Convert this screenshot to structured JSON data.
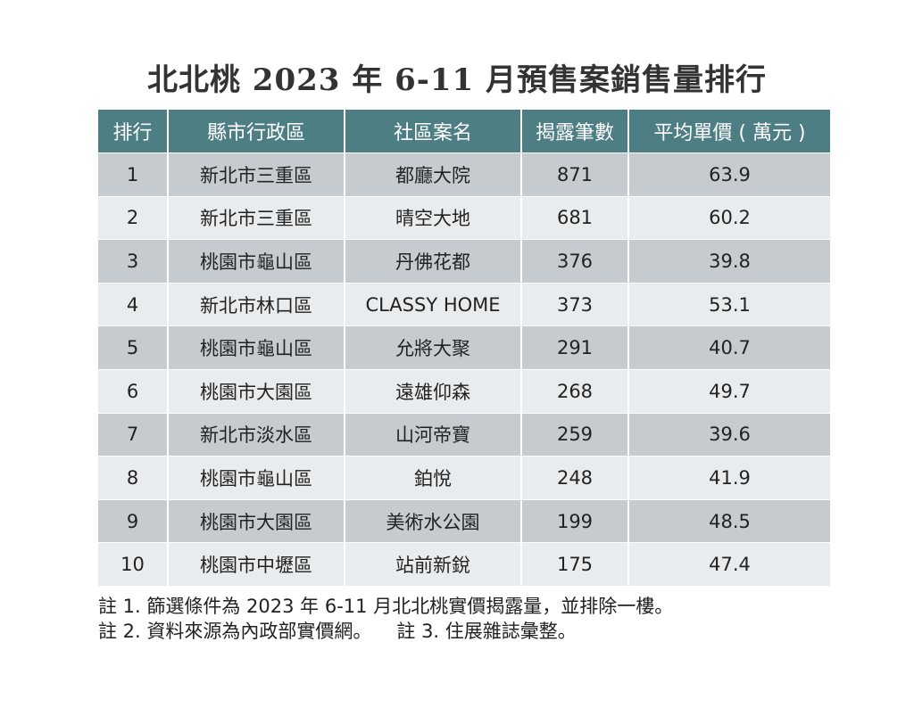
{
  "chart_data": {
    "type": "table",
    "title": "北北桃 2023 年 6-11 月預售案銷售量排行",
    "columns": [
      "排行",
      "縣市行政區",
      "社區案名",
      "揭露筆數",
      "平均單價 ( 萬元 )"
    ],
    "rows": [
      [
        "1",
        "新北市三重區",
        "都廳大院",
        "871",
        "63.9"
      ],
      [
        "2",
        "新北市三重區",
        "晴空大地",
        "681",
        "60.2"
      ],
      [
        "3",
        "桃園市龜山區",
        "丹佛花都",
        "376",
        "39.8"
      ],
      [
        "4",
        "新北市林口區",
        "CLASSY HOME",
        "373",
        "53.1"
      ],
      [
        "5",
        "桃園市龜山區",
        "允將大聚",
        "291",
        "40.7"
      ],
      [
        "6",
        "桃園市大園區",
        "遠雄仰森",
        "268",
        "49.7"
      ],
      [
        "7",
        "新北市淡水區",
        "山河帝寶",
        "259",
        "39.6"
      ],
      [
        "8",
        "桃園市龜山區",
        "鉑悅",
        "248",
        "41.9"
      ],
      [
        "9",
        "桃園市大園區",
        "美術水公園",
        "199",
        "48.5"
      ],
      [
        "10",
        "桃園市中壢區",
        "站前新銳",
        "175",
        "47.4"
      ]
    ]
  },
  "notes": {
    "note1": "註 1. 篩選條件為 2023 年 6-11 月北北桃實價揭露量，並排除一樓。",
    "note2": "註 2. 資料來源為內政部實價網。",
    "note3": "註 3. 住展雜誌彙整。"
  },
  "colors": {
    "header_bg": "#4d7e84",
    "row_dark": "#c5cbce",
    "row_light": "#e9ecee"
  }
}
